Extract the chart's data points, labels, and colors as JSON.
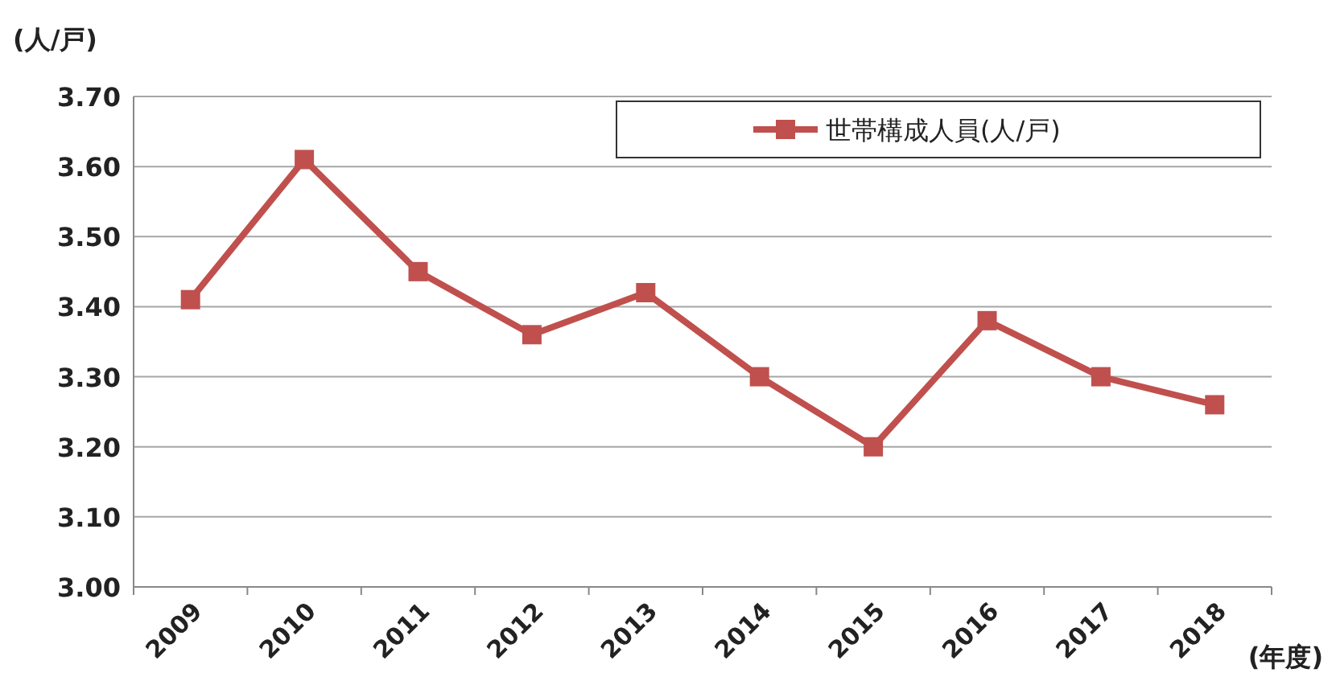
{
  "chart_data": {
    "type": "line",
    "xlabel": "(年度)",
    "ylabel": "(人/戸)",
    "categories": [
      "2009",
      "2010",
      "2011",
      "2012",
      "2013",
      "2014",
      "2015",
      "2016",
      "2017",
      "2018"
    ],
    "series": [
      {
        "name": "世帯構成人員(人/戸)",
        "color": "#c0504d",
        "values": [
          3.41,
          3.61,
          3.45,
          3.36,
          3.42,
          3.3,
          3.2,
          3.38,
          3.3,
          3.26
        ]
      }
    ],
    "ylim": [
      3.0,
      3.7
    ],
    "yticks": [
      {
        "value": 3.0,
        "label": "3.00"
      },
      {
        "value": 3.1,
        "label": "3.10"
      },
      {
        "value": 3.2,
        "label": "3.20"
      },
      {
        "value": 3.3,
        "label": "3.30"
      },
      {
        "value": 3.4,
        "label": "3.40"
      },
      {
        "value": 3.5,
        "label": "3.50"
      },
      {
        "value": 3.6,
        "label": "3.60"
      },
      {
        "value": 3.7,
        "label": "3.70"
      }
    ],
    "grid": "y",
    "legend": "top right",
    "marker": "square",
    "line_style": "solid"
  }
}
